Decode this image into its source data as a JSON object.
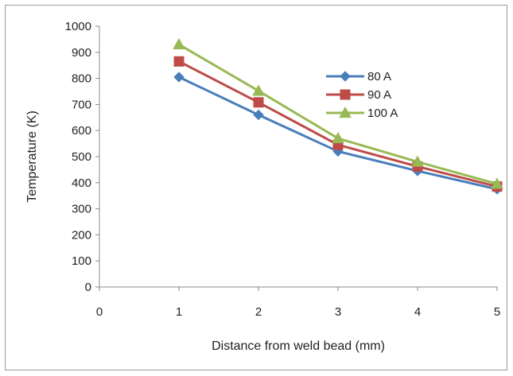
{
  "chart_data": {
    "type": "line",
    "title": "",
    "xlabel": "Distance from weld bead (mm)",
    "ylabel": "Temperature (K)",
    "xlim": [
      0,
      5
    ],
    "ylim": [
      0,
      1000
    ],
    "x_ticks": [
      0,
      1,
      2,
      3,
      4,
      5
    ],
    "y_ticks": [
      0,
      100,
      200,
      300,
      400,
      500,
      600,
      700,
      800,
      900,
      1000
    ],
    "grid": false,
    "legend_position": "upper-right-inside",
    "x": [
      1,
      2,
      3,
      4,
      5
    ],
    "series": [
      {
        "name": "80 A",
        "values": [
          805,
          660,
          520,
          445,
          375
        ],
        "color": "#4a7ebb",
        "marker": "diamond"
      },
      {
        "name": "90 A",
        "values": [
          865,
          708,
          545,
          462,
          385
        ],
        "color": "#be4b48",
        "marker": "square"
      },
      {
        "name": "100 A",
        "values": [
          930,
          752,
          570,
          480,
          395
        ],
        "color": "#98b954",
        "marker": "triangle"
      }
    ]
  }
}
